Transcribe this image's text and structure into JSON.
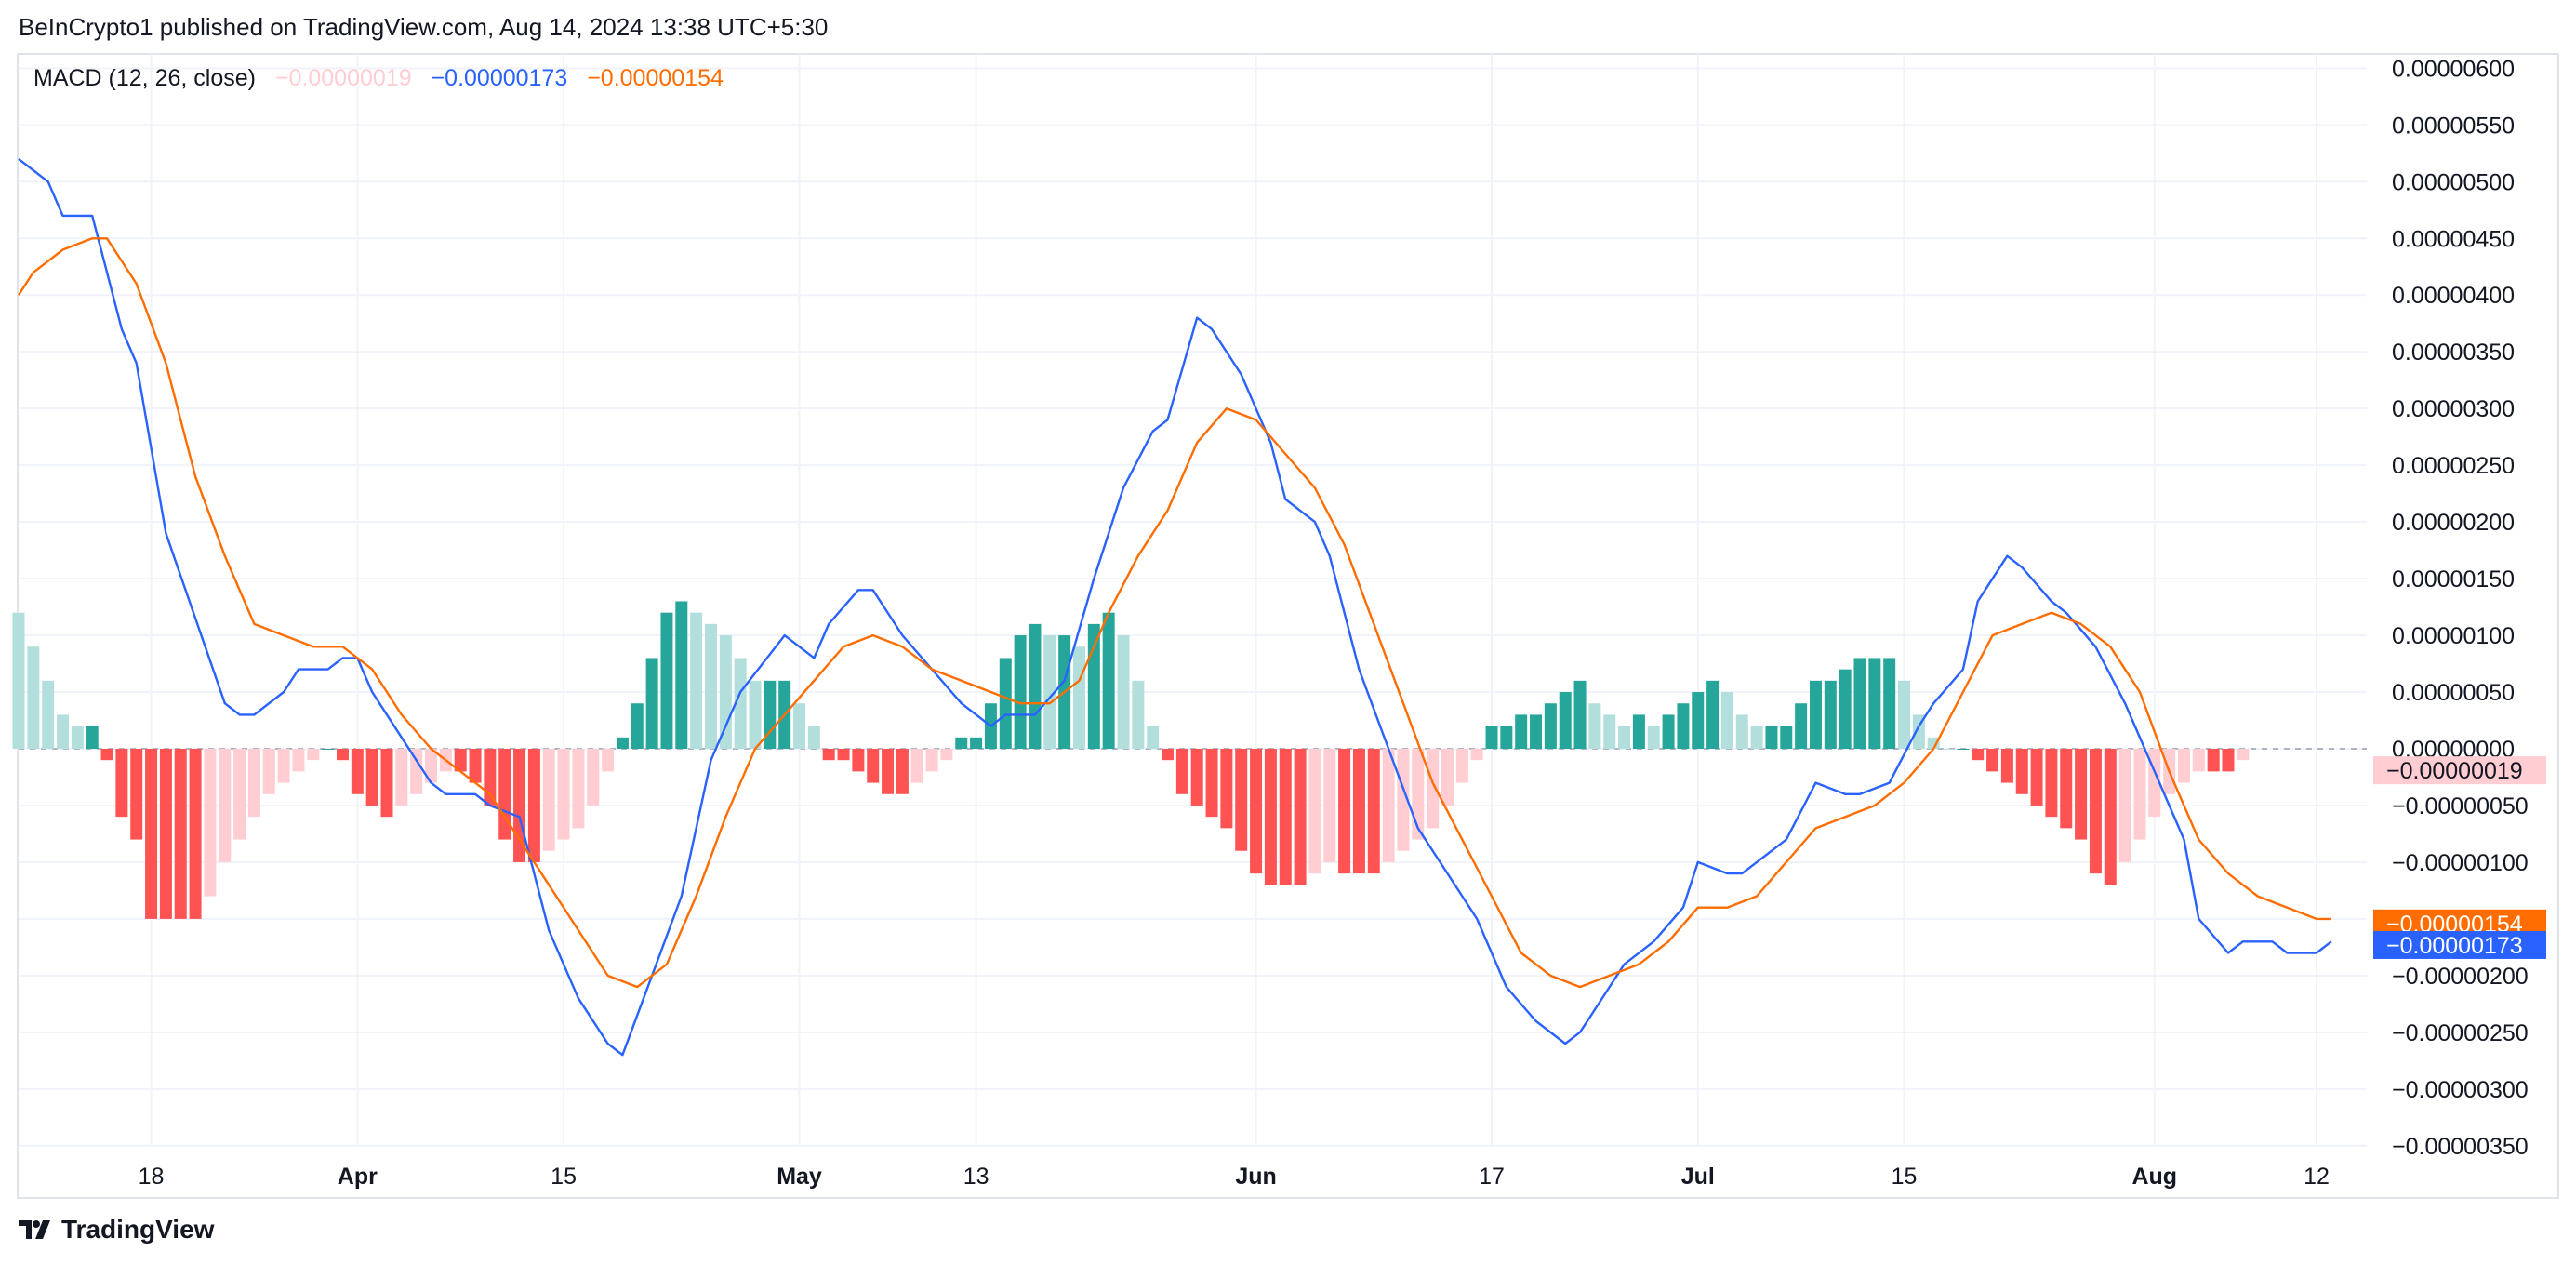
{
  "header": {
    "published_text": "BeInCrypto1 published on TradingView.com, Aug 14, 2024 13:38 UTC+5:30"
  },
  "indicator": {
    "name": "MACD (12, 26, close)",
    "hist_value": "−0.00000019",
    "macd_value": "−0.00000173",
    "signal_value": "−0.00000154"
  },
  "footer": {
    "brand": "TradingView",
    "logo_icon": "tradingview-logo-icon"
  },
  "colors": {
    "macd_line": "#2962ff",
    "signal_line": "#ff6d00",
    "hist_pos_strong": "#26a69a",
    "hist_pos_weak": "#b2dfdb",
    "hist_neg_strong": "#ff5252",
    "hist_neg_weak": "#ffcdd2",
    "grid": "#f0f3fa",
    "zero_line": "#b2b5be"
  },
  "chart_data": {
    "type": "line",
    "title": "MACD (12, 26, close)",
    "xlabel": "",
    "ylabel": "",
    "grid": true,
    "legend": "top-left",
    "ylim": [
      -3.5e-06,
      6.2e-06
    ],
    "y_ticks": [
      "0.00000600",
      "0.00000550",
      "0.00000500",
      "0.00000450",
      "0.00000400",
      "0.00000350",
      "0.00000300",
      "0.00000250",
      "0.00000200",
      "0.00000150",
      "0.00000100",
      "0.00000050",
      "0.00000000",
      "−0.00000050",
      "−0.00000100",
      "−0.00000150",
      "−0.00000200",
      "−0.00000250",
      "−0.00000300",
      "−0.00000350"
    ],
    "y_tick_values": [
      6e-06,
      5.5e-06,
      5e-06,
      4.5e-06,
      4e-06,
      3.5e-06,
      3e-06,
      2.5e-06,
      2e-06,
      1.5e-06,
      1e-06,
      5e-07,
      0,
      -5e-07,
      -1e-06,
      -1.5e-06,
      -2e-06,
      -2.5e-06,
      -3e-06,
      -3.5e-06
    ],
    "x_ticks": [
      {
        "label": "18",
        "day": 9,
        "major": false
      },
      {
        "label": "Apr",
        "day": 23,
        "major": true
      },
      {
        "label": "15",
        "day": 37,
        "major": false
      },
      {
        "label": "May",
        "day": 53,
        "major": true
      },
      {
        "label": "13",
        "day": 65,
        "major": false
      },
      {
        "label": "Jun",
        "day": 84,
        "major": true
      },
      {
        "label": "17",
        "day": 100,
        "major": false
      },
      {
        "label": "Jul",
        "day": 114,
        "major": true
      },
      {
        "label": "15",
        "day": 128,
        "major": false
      },
      {
        "label": "Aug",
        "day": 145,
        "major": true
      },
      {
        "label": "12",
        "day": 156,
        "major": false
      }
    ],
    "x_range_days": [
      0,
      162
    ],
    "series": [
      {
        "name": "MACD",
        "role": "macd",
        "points": [
          [
            0,
            5.2e-06
          ],
          [
            2,
            5e-06
          ],
          [
            3,
            4.7e-06
          ],
          [
            5,
            4.7e-06
          ],
          [
            7,
            3.7e-06
          ],
          [
            8,
            3.4e-06
          ],
          [
            10,
            1.9e-06
          ],
          [
            14,
            4e-07
          ],
          [
            15,
            3e-07
          ],
          [
            16,
            3e-07
          ],
          [
            18,
            5e-07
          ],
          [
            19,
            7e-07
          ],
          [
            21,
            7e-07
          ],
          [
            22,
            8e-07
          ],
          [
            23,
            8e-07
          ],
          [
            24,
            5e-07
          ],
          [
            26,
            1e-07
          ],
          [
            28,
            -3e-07
          ],
          [
            29,
            -4e-07
          ],
          [
            31,
            -4e-07
          ],
          [
            32,
            -5e-07
          ],
          [
            34,
            -6e-07
          ],
          [
            36,
            -1.6e-06
          ],
          [
            38,
            -2.2e-06
          ],
          [
            40,
            -2.6e-06
          ],
          [
            41,
            -2.7e-06
          ],
          [
            43,
            -2e-06
          ],
          [
            45,
            -1.3e-06
          ],
          [
            47,
            -1e-07
          ],
          [
            49,
            5e-07
          ],
          [
            52,
            1e-06
          ],
          [
            54,
            8e-07
          ],
          [
            55,
            1.1e-06
          ],
          [
            57,
            1.4e-06
          ],
          [
            58,
            1.4e-06
          ],
          [
            60,
            1e-06
          ],
          [
            62,
            7e-07
          ],
          [
            64,
            4e-07
          ],
          [
            66,
            2e-07
          ],
          [
            67,
            3e-07
          ],
          [
            69,
            3e-07
          ],
          [
            71,
            6e-07
          ],
          [
            73,
            1.5e-06
          ],
          [
            75,
            2.3e-06
          ],
          [
            77,
            2.8e-06
          ],
          [
            78,
            2.9e-06
          ],
          [
            80,
            3.8e-06
          ],
          [
            81,
            3.7e-06
          ],
          [
            83,
            3.3e-06
          ],
          [
            85,
            2.7e-06
          ],
          [
            86,
            2.2e-06
          ],
          [
            88,
            2e-06
          ],
          [
            89,
            1.7e-06
          ],
          [
            91,
            7e-07
          ],
          [
            93,
            0.0
          ],
          [
            95,
            -7e-07
          ],
          [
            97,
            -1.1e-06
          ],
          [
            99,
            -1.5e-06
          ],
          [
            101,
            -2.1e-06
          ],
          [
            103,
            -2.4e-06
          ],
          [
            105,
            -2.6e-06
          ],
          [
            106,
            -2.5e-06
          ],
          [
            107,
            -2.3e-06
          ],
          [
            109,
            -1.9e-06
          ],
          [
            111,
            -1.7e-06
          ],
          [
            113,
            -1.4e-06
          ],
          [
            114,
            -1e-06
          ],
          [
            116,
            -1.1e-06
          ],
          [
            117,
            -1.1e-06
          ],
          [
            118,
            -1e-06
          ],
          [
            120,
            -8e-07
          ],
          [
            122,
            -3e-07
          ],
          [
            124,
            -4e-07
          ],
          [
            125,
            -4e-07
          ],
          [
            127,
            -3e-07
          ],
          [
            129,
            2e-07
          ],
          [
            130,
            4e-07
          ],
          [
            132,
            7e-07
          ],
          [
            133,
            1.3e-06
          ],
          [
            135,
            1.7e-06
          ],
          [
            136,
            1.6e-06
          ],
          [
            138,
            1.3e-06
          ],
          [
            139,
            1.2e-06
          ],
          [
            141,
            9e-07
          ],
          [
            143,
            4e-07
          ],
          [
            145,
            -2e-07
          ],
          [
            147,
            -8e-07
          ],
          [
            148,
            -1.5e-06
          ],
          [
            150,
            -1.8e-06
          ],
          [
            151,
            -1.7e-06
          ],
          [
            153,
            -1.7e-06
          ],
          [
            154,
            -1.8e-06
          ],
          [
            156,
            -1.8e-06
          ],
          [
            157,
            -1.7e-06
          ]
        ]
      },
      {
        "name": "Signal",
        "role": "signal",
        "points": [
          [
            0,
            4e-06
          ],
          [
            1,
            4.2e-06
          ],
          [
            3,
            4.4e-06
          ],
          [
            5,
            4.5e-06
          ],
          [
            6,
            4.5e-06
          ],
          [
            8,
            4.1e-06
          ],
          [
            10,
            3.4e-06
          ],
          [
            12,
            2.4e-06
          ],
          [
            14,
            1.7e-06
          ],
          [
            16,
            1.1e-06
          ],
          [
            18,
            1e-06
          ],
          [
            20,
            9e-07
          ],
          [
            22,
            9e-07
          ],
          [
            24,
            7e-07
          ],
          [
            26,
            3e-07
          ],
          [
            28,
            0.0
          ],
          [
            30,
            -2e-07
          ],
          [
            32,
            -4e-07
          ],
          [
            34,
            -8e-07
          ],
          [
            36,
            -1.2e-06
          ],
          [
            38,
            -1.6e-06
          ],
          [
            40,
            -2e-06
          ],
          [
            42,
            -2.1e-06
          ],
          [
            44,
            -1.9e-06
          ],
          [
            46,
            -1.3e-06
          ],
          [
            48,
            -6e-07
          ],
          [
            50,
            0.0
          ],
          [
            52,
            3e-07
          ],
          [
            54,
            6e-07
          ],
          [
            56,
            9e-07
          ],
          [
            58,
            1e-06
          ],
          [
            60,
            9e-07
          ],
          [
            62,
            7e-07
          ],
          [
            64,
            6e-07
          ],
          [
            66,
            5e-07
          ],
          [
            68,
            4e-07
          ],
          [
            70,
            4e-07
          ],
          [
            72,
            6e-07
          ],
          [
            74,
            1.2e-06
          ],
          [
            76,
            1.7e-06
          ],
          [
            78,
            2.1e-06
          ],
          [
            80,
            2.7e-06
          ],
          [
            82,
            3e-06
          ],
          [
            84,
            2.9e-06
          ],
          [
            86,
            2.6e-06
          ],
          [
            88,
            2.3e-06
          ],
          [
            90,
            1.8e-06
          ],
          [
            92,
            1.1e-06
          ],
          [
            94,
            4e-07
          ],
          [
            96,
            -3e-07
          ],
          [
            98,
            -8e-07
          ],
          [
            100,
            -1.3e-06
          ],
          [
            102,
            -1.8e-06
          ],
          [
            104,
            -2e-06
          ],
          [
            106,
            -2.1e-06
          ],
          [
            108,
            -2e-06
          ],
          [
            110,
            -1.9e-06
          ],
          [
            112,
            -1.7e-06
          ],
          [
            114,
            -1.4e-06
          ],
          [
            116,
            -1.4e-06
          ],
          [
            118,
            -1.3e-06
          ],
          [
            120,
            -1e-06
          ],
          [
            122,
            -7e-07
          ],
          [
            124,
            -6e-07
          ],
          [
            126,
            -5e-07
          ],
          [
            128,
            -3e-07
          ],
          [
            130,
            0.0
          ],
          [
            132,
            5e-07
          ],
          [
            134,
            1e-06
          ],
          [
            136,
            1.1e-06
          ],
          [
            138,
            1.2e-06
          ],
          [
            140,
            1.1e-06
          ],
          [
            142,
            9e-07
          ],
          [
            144,
            5e-07
          ],
          [
            146,
            -2e-07
          ],
          [
            148,
            -8e-07
          ],
          [
            150,
            -1.1e-06
          ],
          [
            152,
            -1.3e-06
          ],
          [
            154,
            -1.4e-06
          ],
          [
            156,
            -1.5e-06
          ],
          [
            157,
            -1.5e-06
          ]
        ]
      },
      {
        "name": "Histogram",
        "role": "histogram",
        "type": "bar",
        "x_start": 0,
        "x_step": 1,
        "values": [
          1.2e-06,
          9e-07,
          6e-07,
          3e-07,
          2e-07,
          2e-07,
          -1e-07,
          -6e-07,
          -8e-07,
          -1.5e-06,
          -1.5e-06,
          -1.5e-06,
          -1.5e-06,
          -1.3e-06,
          -1e-06,
          -8e-07,
          -6e-07,
          -4e-07,
          -3e-07,
          -2e-07,
          -1e-07,
          0.0,
          -1e-07,
          -4e-07,
          -5e-07,
          -6e-07,
          -5e-07,
          -4e-07,
          -3e-07,
          -2e-07,
          -2e-07,
          -3e-07,
          -5e-07,
          -8e-07,
          -1e-06,
          -1e-06,
          -9e-07,
          -8e-07,
          -7e-07,
          -5e-07,
          -2e-07,
          1e-07,
          4e-07,
          8e-07,
          1.2e-06,
          1.3e-06,
          1.2e-06,
          1.1e-06,
          1e-06,
          8e-07,
          6e-07,
          6e-07,
          6e-07,
          4e-07,
          2e-07,
          -1e-07,
          -1e-07,
          -2e-07,
          -3e-07,
          -4e-07,
          -4e-07,
          -3e-07,
          -2e-07,
          -1e-07,
          1e-07,
          1e-07,
          4e-07,
          8e-07,
          1e-06,
          1.1e-06,
          1e-06,
          1e-06,
          9e-07,
          1.1e-06,
          1.2e-06,
          1e-06,
          6e-07,
          2e-07,
          -1e-07,
          -4e-07,
          -5e-07,
          -6e-07,
          -7e-07,
          -9e-07,
          -1.1e-06,
          -1.2e-06,
          -1.2e-06,
          -1.2e-06,
          -1.1e-06,
          -1e-06,
          -1.1e-06,
          -1.1e-06,
          -1.1e-06,
          -1e-06,
          -9e-07,
          -8e-07,
          -7e-07,
          -5e-07,
          -3e-07,
          -1e-07,
          2e-07,
          2e-07,
          3e-07,
          3e-07,
          4e-07,
          5e-07,
          6e-07,
          4e-07,
          3e-07,
          2e-07,
          3e-07,
          2e-07,
          3e-07,
          4e-07,
          5e-07,
          6e-07,
          5e-07,
          3e-07,
          2e-07,
          2e-07,
          2e-07,
          4e-07,
          6e-07,
          6e-07,
          7e-07,
          8e-07,
          8e-07,
          8e-07,
          6e-07,
          3e-07,
          1e-07,
          0.0,
          0.0,
          -1e-07,
          -2e-07,
          -3e-07,
          -4e-07,
          -5e-07,
          -6e-07,
          -7e-07,
          -8e-07,
          -1.1e-06,
          -1.2e-06,
          -1e-06,
          -8e-07,
          -6e-07,
          -4e-07,
          -3e-07,
          -2e-07,
          -2e-07,
          -2e-07,
          -1e-07
        ]
      }
    ],
    "last_value_tags": [
      {
        "label": "−0.00000019",
        "value": -1.9e-07,
        "role": "histogram"
      },
      {
        "label": "−0.00000154",
        "value": -1.54e-06,
        "role": "signal"
      },
      {
        "label": "−0.00000173",
        "value": -1.73e-06,
        "role": "macd"
      }
    ]
  }
}
